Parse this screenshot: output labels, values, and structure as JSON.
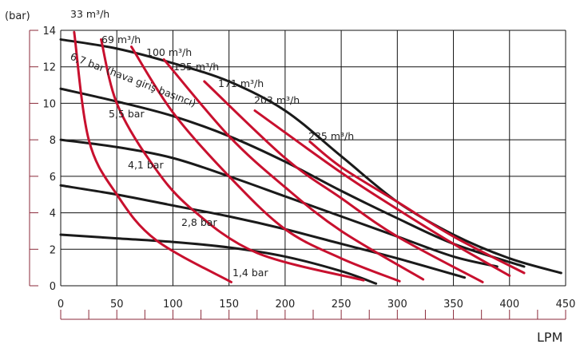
{
  "chart_data": {
    "type": "line",
    "ylabel": "(bar)",
    "xlabel": "LPM",
    "xlim": [
      0,
      450
    ],
    "ylim": [
      0,
      14
    ],
    "x_ticks": [
      "0",
      "50",
      "100",
      "150",
      "200",
      "250",
      "300",
      "350",
      "400",
      "450"
    ],
    "y_ticks": [
      "0",
      "2",
      "4",
      "6",
      "8",
      "10",
      "12",
      "14"
    ],
    "grid": true,
    "colors": {
      "pressure": "#1a1a1a",
      "flow": "#c8102e",
      "axis": "#8b2a3a"
    },
    "pressure_curves": [
      {
        "name": "6,7 bar (hava giriş basıncı)",
        "points": [
          [
            0,
            13.5
          ],
          [
            50,
            13.0
          ],
          [
            100,
            12.2
          ],
          [
            150,
            11.2
          ],
          [
            200,
            9.6
          ],
          [
            250,
            7.1
          ],
          [
            300,
            4.6
          ],
          [
            350,
            2.8
          ],
          [
            400,
            1.5
          ],
          [
            446,
            0.7
          ]
        ]
      },
      {
        "name": "5,5 bar",
        "points": [
          [
            0,
            10.8
          ],
          [
            50,
            10.1
          ],
          [
            100,
            9.3
          ],
          [
            150,
            8.2
          ],
          [
            200,
            6.8
          ],
          [
            250,
            5.2
          ],
          [
            300,
            3.7
          ],
          [
            350,
            2.3
          ],
          [
            413,
            1.05
          ]
        ]
      },
      {
        "name": "4,1 bar",
        "points": [
          [
            0,
            8.0
          ],
          [
            50,
            7.6
          ],
          [
            100,
            7.0
          ],
          [
            150,
            6.0
          ],
          [
            200,
            4.9
          ],
          [
            250,
            3.8
          ],
          [
            300,
            2.7
          ],
          [
            350,
            1.6
          ],
          [
            389,
            1.05
          ]
        ]
      },
      {
        "name": "2,8 bar",
        "points": [
          [
            0,
            5.5
          ],
          [
            50,
            5.0
          ],
          [
            100,
            4.4
          ],
          [
            150,
            3.8
          ],
          [
            200,
            3.1
          ],
          [
            250,
            2.3
          ],
          [
            300,
            1.5
          ],
          [
            360,
            0.45
          ]
        ]
      },
      {
        "name": "1,4 bar",
        "points": [
          [
            0,
            2.8
          ],
          [
            50,
            2.6
          ],
          [
            100,
            2.4
          ],
          [
            150,
            2.1
          ],
          [
            200,
            1.6
          ],
          [
            250,
            0.8
          ],
          [
            281,
            0.12
          ]
        ]
      }
    ],
    "flow_curves": [
      {
        "name": "33 m³/h",
        "points": [
          [
            12,
            13.9
          ],
          [
            25,
            8.0
          ],
          [
            50,
            5.0
          ],
          [
            85,
            2.5
          ],
          [
            152,
            0.2
          ]
        ]
      },
      {
        "name": "69 m³/h",
        "points": [
          [
            36,
            13.5
          ],
          [
            50,
            10.0
          ],
          [
            80,
            6.8
          ],
          [
            115,
            4.3
          ],
          [
            175,
            1.8
          ],
          [
            270,
            0.3
          ]
        ]
      },
      {
        "name": "100 m³/h",
        "points": [
          [
            63,
            13.1
          ],
          [
            100,
            9.5
          ],
          [
            150,
            6.0
          ],
          [
            200,
            3.1
          ],
          [
            250,
            1.5
          ],
          [
            302,
            0.25
          ]
        ]
      },
      {
        "name": "135 m³/h",
        "points": [
          [
            92,
            12.4
          ],
          [
            150,
            8.2
          ],
          [
            200,
            5.4
          ],
          [
            250,
            3.0
          ],
          [
            323,
            0.35
          ]
        ]
      },
      {
        "name": "171 m³/h",
        "points": [
          [
            128,
            11.2
          ],
          [
            200,
            7.0
          ],
          [
            250,
            4.8
          ],
          [
            300,
            2.7
          ],
          [
            376,
            0.2
          ]
        ]
      },
      {
        "name": "203 m³/h",
        "points": [
          [
            173,
            9.6
          ],
          [
            250,
            6.2
          ],
          [
            300,
            4.2
          ],
          [
            350,
            2.3
          ],
          [
            400,
            0.55
          ]
        ]
      },
      {
        "name": "235 m³/h",
        "points": [
          [
            222,
            7.9
          ],
          [
            250,
            6.5
          ],
          [
            300,
            4.6
          ],
          [
            350,
            2.7
          ],
          [
            413,
            0.7
          ]
        ]
      }
    ]
  }
}
